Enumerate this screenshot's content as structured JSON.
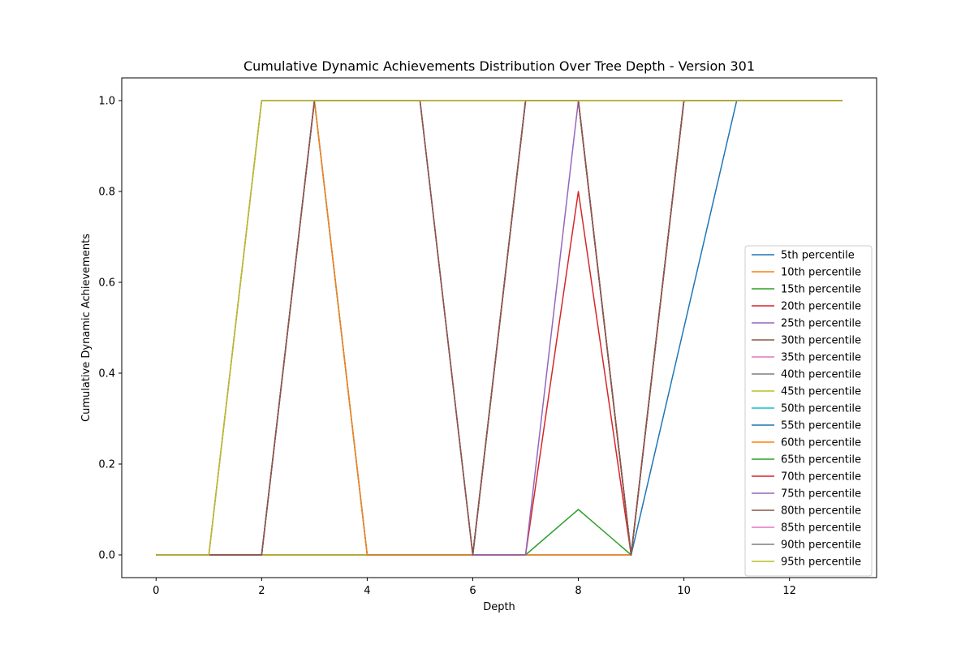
{
  "chart_data": {
    "type": "line",
    "title": "Cumulative Dynamic Achievements Distribution Over Tree Depth - Version 301",
    "xlabel": "Depth",
    "ylabel": "Cumulative Dynamic Achievements",
    "xlim": [
      -0.65,
      13.65
    ],
    "ylim": [
      -0.05,
      1.05
    ],
    "xticks": [
      0,
      2,
      4,
      6,
      8,
      10,
      12
    ],
    "yticks": [
      0.0,
      0.2,
      0.4,
      0.6,
      0.8,
      1.0
    ],
    "xtick_labels": [
      "0",
      "2",
      "4",
      "6",
      "8",
      "10",
      "12"
    ],
    "ytick_labels": [
      "0.0",
      "0.2",
      "0.4",
      "0.6",
      "0.8",
      "1.0"
    ],
    "grid": false,
    "legend_position": "lower-right",
    "x": [
      0,
      1,
      2,
      3,
      4,
      5,
      6,
      7,
      8,
      9,
      10,
      11,
      12,
      13
    ],
    "series": [
      {
        "name": "5th percentile",
        "color": "#1f77b4",
        "values": [
          0,
          0,
          0,
          0,
          0,
          0,
          0,
          0,
          0,
          0,
          0.5,
          1,
          1,
          1
        ]
      },
      {
        "name": "10th percentile",
        "color": "#ff7f0e",
        "values": [
          0,
          0,
          0,
          0,
          0,
          0,
          0,
          0,
          0,
          0,
          1,
          1,
          1,
          1
        ]
      },
      {
        "name": "15th percentile",
        "color": "#2ca02c",
        "values": [
          0,
          0,
          0,
          0,
          0,
          0,
          0,
          0,
          0.1,
          0,
          1,
          1,
          1,
          1
        ]
      },
      {
        "name": "20th percentile",
        "color": "#d62728",
        "values": [
          0,
          0,
          0,
          0,
          0,
          0,
          0,
          0,
          0.8,
          0,
          1,
          1,
          1,
          1
        ]
      },
      {
        "name": "25th percentile",
        "color": "#9467bd",
        "values": [
          0,
          0,
          0,
          0,
          0,
          0,
          0,
          0,
          1,
          0,
          1,
          1,
          1,
          1
        ]
      },
      {
        "name": "30th percentile",
        "color": "#8c564b",
        "values": [
          0,
          0,
          0,
          0,
          0,
          0,
          0,
          1,
          1,
          0,
          1,
          1,
          1,
          1
        ]
      },
      {
        "name": "35th percentile",
        "color": "#e377c2",
        "values": [
          0,
          0,
          0,
          0,
          0,
          0,
          0,
          1,
          1,
          0,
          1,
          1,
          1,
          1
        ]
      },
      {
        "name": "40th percentile",
        "color": "#7f7f7f",
        "values": [
          0,
          0,
          0,
          0,
          0,
          0,
          0,
          1,
          1,
          0,
          1,
          1,
          1,
          1
        ]
      },
      {
        "name": "45th percentile",
        "color": "#bcbd22",
        "values": [
          0,
          0,
          0,
          0,
          0,
          0,
          0,
          1,
          1,
          0,
          1,
          1,
          1,
          1
        ]
      },
      {
        "name": "50th percentile",
        "color": "#17becf",
        "values": [
          0,
          0,
          0,
          1,
          0,
          0,
          0,
          1,
          1,
          0,
          1,
          1,
          1,
          1
        ]
      },
      {
        "name": "55th percentile",
        "color": "#1f77b4",
        "values": [
          0,
          0,
          0,
          1,
          0,
          0,
          0,
          1,
          1,
          0,
          1,
          1,
          1,
          1
        ]
      },
      {
        "name": "60th percentile",
        "color": "#ff7f0e",
        "values": [
          0,
          0,
          0,
          1,
          0,
          0,
          0,
          1,
          1,
          0,
          1,
          1,
          1,
          1
        ]
      },
      {
        "name": "65th percentile",
        "color": "#2ca02c",
        "values": [
          0,
          0,
          0,
          1,
          1,
          1,
          0,
          1,
          1,
          0,
          1,
          1,
          1,
          1
        ]
      },
      {
        "name": "70th percentile",
        "color": "#d62728",
        "values": [
          0,
          0,
          0,
          1,
          1,
          1,
          0,
          1,
          1,
          0,
          1,
          1,
          1,
          1
        ]
      },
      {
        "name": "75th percentile",
        "color": "#9467bd",
        "values": [
          0,
          0,
          0,
          1,
          1,
          1,
          0,
          1,
          1,
          0,
          1,
          1,
          1,
          1
        ]
      },
      {
        "name": "80th percentile",
        "color": "#8c564b",
        "values": [
          0,
          0,
          0,
          1,
          1,
          1,
          0,
          1,
          1,
          0,
          1,
          1,
          1,
          1
        ]
      },
      {
        "name": "85th percentile",
        "color": "#e377c2",
        "values": [
          0,
          0,
          1,
          1,
          1,
          1,
          1,
          1,
          1,
          1,
          1,
          1,
          1,
          1
        ]
      },
      {
        "name": "90th percentile",
        "color": "#7f7f7f",
        "values": [
          0,
          0,
          1,
          1,
          1,
          1,
          1,
          1,
          1,
          1,
          1,
          1,
          1,
          1
        ]
      },
      {
        "name": "95th percentile",
        "color": "#bcbd22",
        "values": [
          0,
          0,
          1,
          1,
          1,
          1,
          1,
          1,
          1,
          1,
          1,
          1,
          1,
          1
        ]
      }
    ]
  }
}
